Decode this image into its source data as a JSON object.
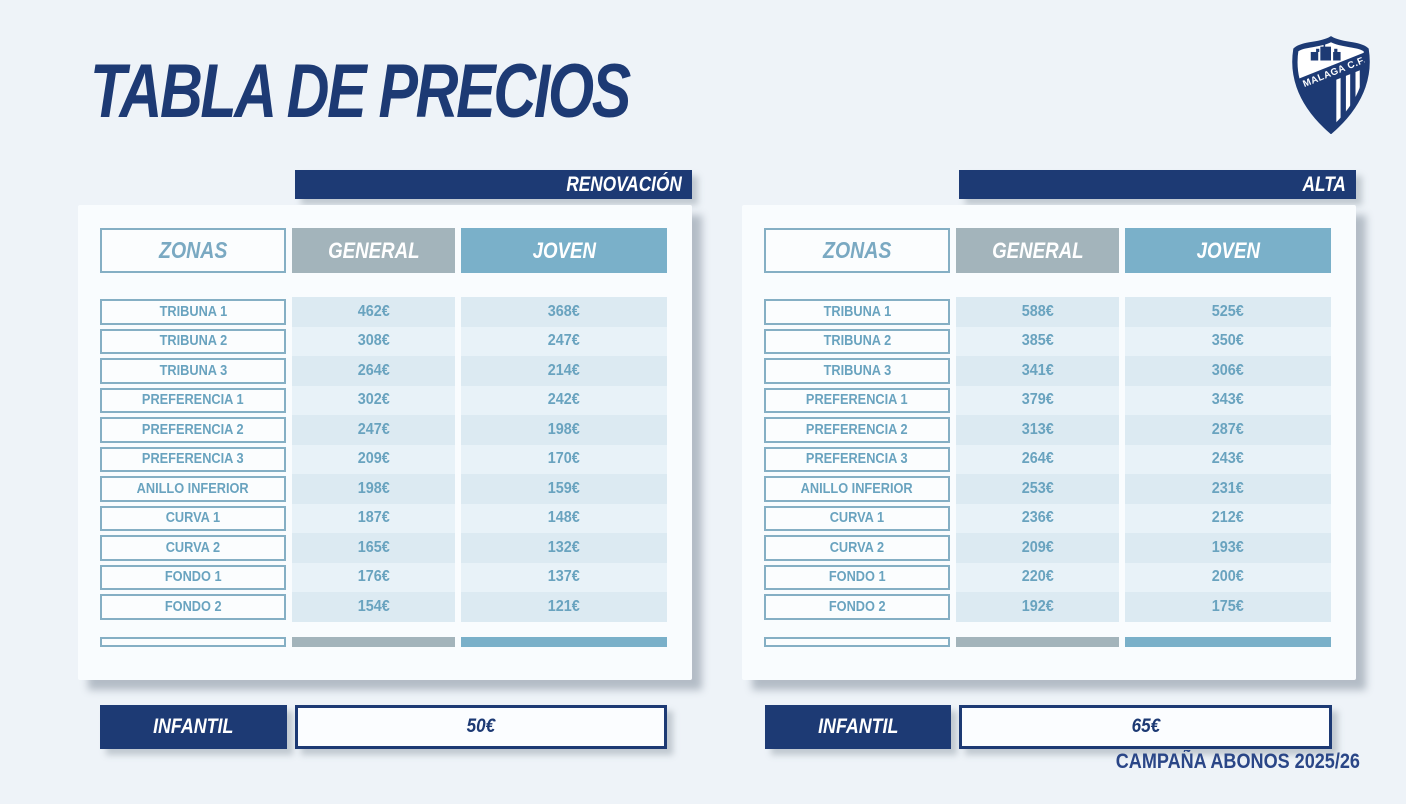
{
  "title": "TABLA DE PRECIOS",
  "footer": "CAMPAÑA ABONOS 2025/26",
  "infantil_label": "INFANTIL",
  "logo": {
    "name": "malaga-cf-crest",
    "band_text": "MALAGA C.F."
  },
  "colors": {
    "navy": "#1d3a74",
    "gray_header": "#a3b4bb",
    "joven_blue": "#7ab0c9",
    "steel_text": "#69a3bf",
    "stripe_dark": "#dceaf2",
    "stripe_light": "#e8f2f8",
    "page_bg": "#eef3f8"
  },
  "tables": [
    {
      "banner": "RENOVACIÓN",
      "columns": {
        "zonas": "ZONAS",
        "general": "GENERAL",
        "joven": "JOVEN"
      },
      "rows": [
        {
          "zone": "TRIBUNA 1",
          "general": "462€",
          "joven": "368€"
        },
        {
          "zone": "TRIBUNA 2",
          "general": "308€",
          "joven": "247€"
        },
        {
          "zone": "TRIBUNA 3",
          "general": "264€",
          "joven": "214€"
        },
        {
          "zone": "PREFERENCIA 1",
          "general": "302€",
          "joven": "242€"
        },
        {
          "zone": "PREFERENCIA 2",
          "general": "247€",
          "joven": "198€"
        },
        {
          "zone": "PREFERENCIA 3",
          "general": "209€",
          "joven": "170€"
        },
        {
          "zone": "ANILLO INFERIOR",
          "general": "198€",
          "joven": "159€"
        },
        {
          "zone": "CURVA 1",
          "general": "187€",
          "joven": "148€"
        },
        {
          "zone": "CURVA  2",
          "general": "165€",
          "joven": "132€"
        },
        {
          "zone": "FONDO 1",
          "general": "176€",
          "joven": "137€"
        },
        {
          "zone": "FONDO 2",
          "general": "154€",
          "joven": "121€"
        }
      ],
      "infantil_price": "50€"
    },
    {
      "banner": "ALTA",
      "columns": {
        "zonas": "ZONAS",
        "general": "GENERAL",
        "joven": "JOVEN"
      },
      "rows": [
        {
          "zone": "TRIBUNA 1",
          "general": "588€",
          "joven": "525€"
        },
        {
          "zone": "TRIBUNA 2",
          "general": "385€",
          "joven": "350€"
        },
        {
          "zone": "TRIBUNA 3",
          "general": "341€",
          "joven": "306€"
        },
        {
          "zone": "PREFERENCIA 1",
          "general": "379€",
          "joven": "343€"
        },
        {
          "zone": "PREFERENCIA 2",
          "general": "313€",
          "joven": "287€"
        },
        {
          "zone": "PREFERENCIA 3",
          "general": "264€",
          "joven": "243€"
        },
        {
          "zone": "ANILLO INFERIOR",
          "general": "253€",
          "joven": "231€"
        },
        {
          "zone": "CURVA 1",
          "general": "236€",
          "joven": "212€"
        },
        {
          "zone": "CURVA  2",
          "general": "209€",
          "joven": "193€"
        },
        {
          "zone": "FONDO 1",
          "general": "220€",
          "joven": "200€"
        },
        {
          "zone": "FONDO 2",
          "general": "192€",
          "joven": "175€"
        }
      ],
      "infantil_price": "65€"
    }
  ]
}
